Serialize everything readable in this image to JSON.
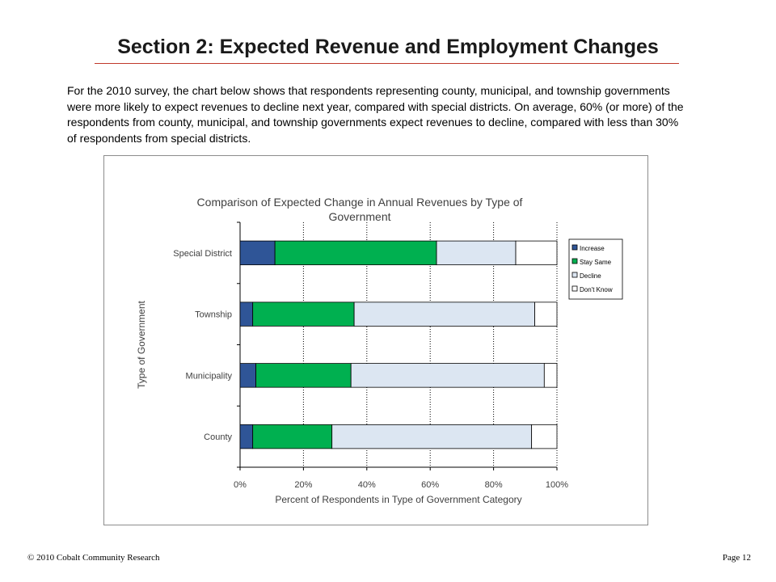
{
  "page": {
    "title": "Section 2: Expected Revenue and Employment Changes",
    "intro": "For the 2010 survey, the chart below shows that respondents representing county, municipal, and township governments were more likely to expect revenues to decline next year, compared with special districts.  On average, 60% (or more) of the respondents from county, municipal, and township governments expect revenues to decline, compared with less than 30% of respondents from special districts.",
    "footer_left": "© 2010 Cobalt Community Research",
    "footer_right": "Page 12",
    "accent_color": "#c0392b"
  },
  "chart_data": {
    "type": "bar",
    "orientation": "horizontal",
    "stacked": "percent",
    "title": "Comparison of Expected Change in Annual Revenues by Type of Government",
    "xlabel": "Percent of Respondents in Type of Government Category",
    "ylabel": "Type of Government",
    "xlim": [
      0,
      100
    ],
    "x_ticks": [
      "0%",
      "20%",
      "40%",
      "60%",
      "80%",
      "100%"
    ],
    "categories": [
      "Special District",
      "Township",
      "Municipality",
      "County"
    ],
    "series": [
      {
        "name": "Increase",
        "color": "#2f5597",
        "values": [
          11,
          4,
          5,
          4
        ]
      },
      {
        "name": "Stay Same",
        "color": "#00b050",
        "values": [
          51,
          32,
          30,
          25
        ]
      },
      {
        "name": "Decline",
        "color": "#dce6f2",
        "values": [
          25,
          57,
          61,
          63
        ]
      },
      {
        "name": "Don't Know",
        "color": "#ffffff",
        "values": [
          13,
          7,
          4,
          8
        ]
      }
    ],
    "grid": "vertical dotted",
    "legend_position": "right"
  }
}
